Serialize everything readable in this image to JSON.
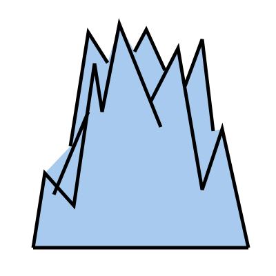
{
  "canvas": {
    "background": "#ffffff"
  },
  "shape": {
    "name": "ice-crystal-spikes-illustration",
    "fill": "#a8caee",
    "stroke": "#000000"
  }
}
